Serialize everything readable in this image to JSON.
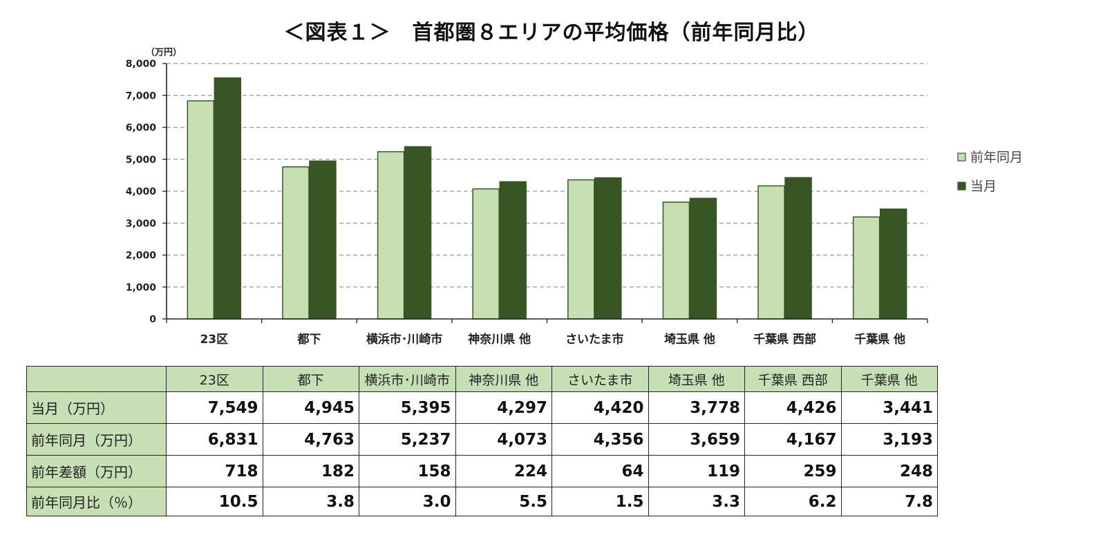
{
  "title": "＜図表１＞　首都圏８エリアの平均価格（前年同月比）",
  "chart_data": {
    "type": "bar",
    "title": "＜図表１＞　首都圏８エリアの平均価格（前年同月比）",
    "unit_label": "（万円）",
    "categories": [
      "23区",
      "都下",
      "横浜市･川崎市",
      "神奈川県 他",
      "さいたま市",
      "埼玉県 他",
      "千葉県 西部",
      "千葉県 他"
    ],
    "series": [
      {
        "name": "前年同月",
        "values": [
          6831,
          4763,
          5237,
          4073,
          4356,
          3659,
          4167,
          3193
        ],
        "color": "#c6e0b4"
      },
      {
        "name": "当月",
        "values": [
          7549,
          4945,
          5395,
          4297,
          4420,
          3778,
          4426,
          3441
        ],
        "color": "#375623"
      }
    ],
    "ylim": [
      0,
      8000
    ],
    "yticks": [
      0,
      1000,
      2000,
      3000,
      4000,
      5000,
      6000,
      7000,
      8000
    ],
    "ytick_labels": [
      "0",
      "1,000",
      "2,000",
      "3,000",
      "4,000",
      "5,000",
      "6,000",
      "7,000",
      "8,000"
    ],
    "grid": true,
    "legend_position": "right"
  },
  "table": {
    "columns": [
      "23区",
      "都下",
      "横浜市･川崎市",
      "神奈川県 他",
      "さいたま市",
      "埼玉県 他",
      "千葉県 西部",
      "千葉県 他"
    ],
    "rows": [
      {
        "label": "当月（万円）",
        "values": [
          "7,549",
          "4,945",
          "5,395",
          "4,297",
          "4,420",
          "3,778",
          "4,426",
          "3,441"
        ]
      },
      {
        "label": "前年同月（万円）",
        "values": [
          "6,831",
          "4,763",
          "5,237",
          "4,073",
          "4,356",
          "3,659",
          "4,167",
          "3,193"
        ]
      },
      {
        "label": "前年差額（万円）",
        "values": [
          "718",
          "182",
          "158",
          "224",
          "64",
          "119",
          "259",
          "248"
        ]
      },
      {
        "label": "前年同月比（％）",
        "values": [
          "10.5",
          "3.8",
          "3.0",
          "5.5",
          "1.5",
          "3.3",
          "6.2",
          "7.8"
        ]
      }
    ]
  }
}
